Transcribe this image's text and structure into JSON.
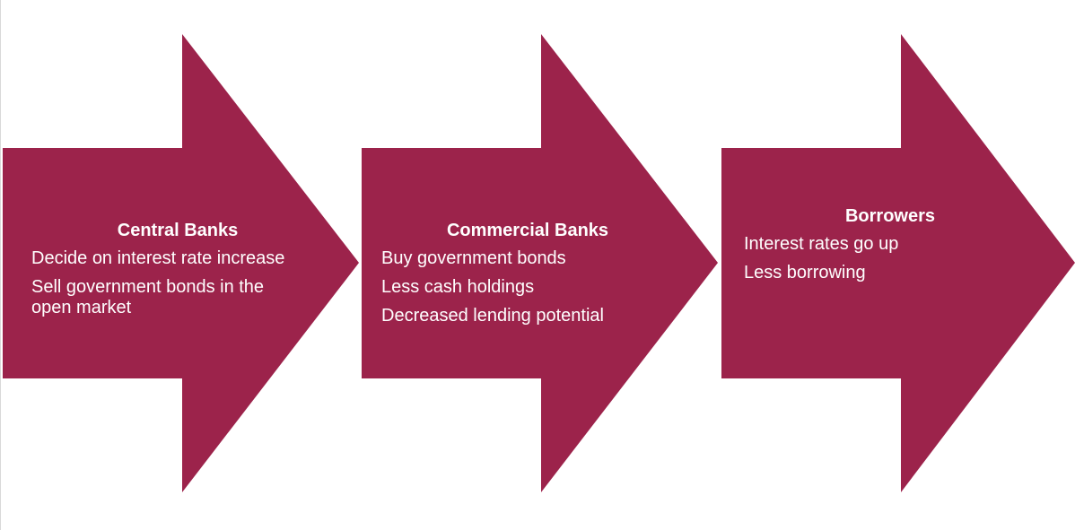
{
  "colors": {
    "arrow_fill": "#9c234b",
    "text": "#ffffff"
  },
  "steps": [
    {
      "title": "Central Banks",
      "items": [
        "Decide on interest rate increase",
        "Sell government bonds in the open market"
      ]
    },
    {
      "title": "Commercial Banks",
      "items": [
        "Buy government bonds",
        "Less cash holdings",
        "Decreased lending potential"
      ]
    },
    {
      "title": "Borrowers",
      "items": [
        "Interest rates go up",
        "Less borrowing"
      ]
    }
  ]
}
